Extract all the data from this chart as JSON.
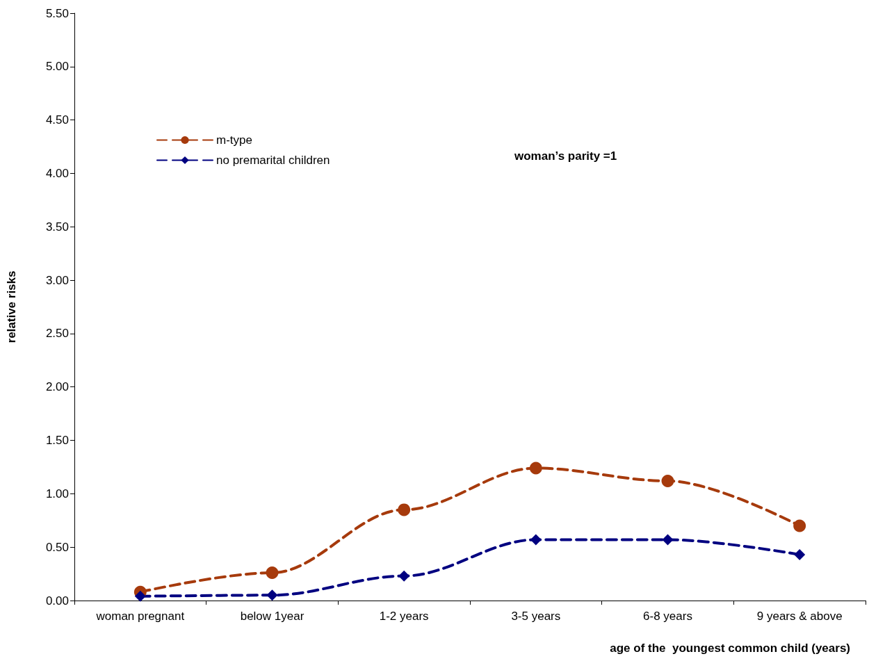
{
  "chart_data": {
    "type": "line",
    "xlabel": "age of the  youngest common child (years)",
    "ylabel": "relative risks",
    "annotations": [
      "woman’s parity =1"
    ],
    "categories": [
      "woman pregnant",
      "below 1year",
      "1-2 years",
      "3-5 years",
      "6-8 years",
      "9 years & above"
    ],
    "series": [
      {
        "name": "m-type",
        "color": "#a63a0c",
        "marker": "circle",
        "line_style": "dashed",
        "values": [
          0.08,
          0.26,
          0.85,
          1.24,
          1.12,
          0.7
        ]
      },
      {
        "name": "no premarital children",
        "color": "#000080",
        "marker": "diamond",
        "line_style": "dashed",
        "values": [
          0.04,
          0.05,
          0.23,
          0.57,
          0.57,
          0.43
        ]
      }
    ],
    "ylim": [
      0,
      5.5
    ],
    "yticks": [
      {
        "value": 0,
        "label": "0.00"
      },
      {
        "value": 0.5,
        "label": "0.50"
      },
      {
        "value": 1,
        "label": "1.00"
      },
      {
        "value": 1.5,
        "label": "1.50"
      },
      {
        "value": 2,
        "label": "2.00"
      },
      {
        "value": 2.5,
        "label": "2.50"
      },
      {
        "value": 3,
        "label": "3.00"
      },
      {
        "value": 3.5,
        "label": "3.50"
      },
      {
        "value": 4,
        "label": "4.00"
      },
      {
        "value": 4.5,
        "label": "4.50"
      },
      {
        "value": 5,
        "label": "5.00"
      },
      {
        "value": 5.5,
        "label": "5.50"
      }
    ],
    "grid": false,
    "legend": "top left"
  }
}
